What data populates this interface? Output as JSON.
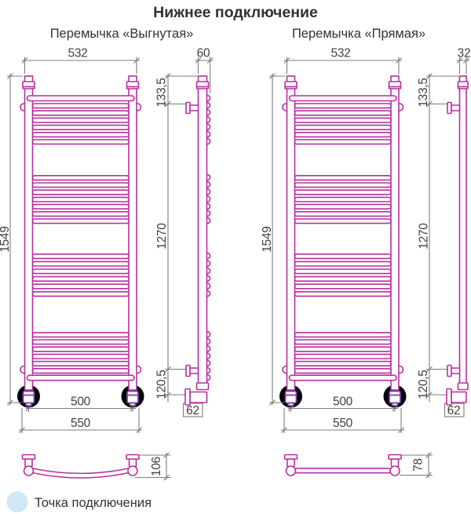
{
  "title": "Нижнее подключение",
  "legend": {
    "label": "Точка подключения"
  },
  "colors": {
    "pipe": "#b82fa0",
    "fitting": "#7a3fa6",
    "connection_highlight": "#cfe8f7",
    "dimension_line": "#7c7c7c",
    "dimension_text": "#3f3f3f",
    "title_text": "#323232"
  },
  "diagrams": [
    {
      "name": "curved-jumper-variant",
      "subtitle": "Перемычка «Выгнутая»",
      "dimensions": {
        "top_width": "532",
        "overall_height": "1549",
        "connection_spacing": "500",
        "overall_width": "550",
        "side_depth": "60",
        "top_to_bracket": "133,5",
        "bracket_span": "1270",
        "bracket_to_connection": "120,5",
        "connection_offset": "62",
        "jumper_depth": "106"
      }
    },
    {
      "name": "straight-jumper-variant",
      "subtitle": "Перемычка «Прямая»",
      "dimensions": {
        "top_width": "532",
        "overall_height": "1549",
        "connection_spacing": "500",
        "overall_width": "550",
        "side_depth": "32",
        "top_to_bracket": "133,5",
        "bracket_span": "1270",
        "bracket_to_connection": "120,5",
        "connection_offset": "62",
        "jumper_depth": "78"
      }
    }
  ],
  "rung_groups": [
    {
      "count": 7,
      "top_shelf": true
    },
    {
      "count": 7
    },
    {
      "count": 6
    },
    {
      "count": 7,
      "bottom_shelf": true
    }
  ]
}
